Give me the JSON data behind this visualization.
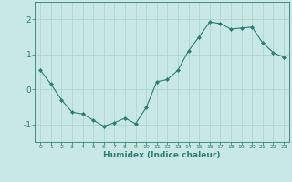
{
  "x": [
    0,
    1,
    2,
    3,
    4,
    5,
    6,
    7,
    8,
    9,
    10,
    11,
    12,
    13,
    14,
    15,
    16,
    17,
    18,
    19,
    20,
    21,
    22,
    23
  ],
  "y": [
    0.55,
    0.15,
    -0.3,
    -0.65,
    -0.7,
    -0.88,
    -1.05,
    -0.95,
    -0.82,
    -0.98,
    -0.52,
    0.22,
    0.28,
    0.55,
    1.1,
    1.5,
    1.92,
    1.88,
    1.72,
    1.75,
    1.78,
    1.33,
    1.05,
    0.92
  ],
  "line_color": "#2e7d6e",
  "marker": "D",
  "marker_size": 2.0,
  "xlabel": "Humidex (Indice chaleur)",
  "xlim": [
    -0.5,
    23.5
  ],
  "ylim": [
    -1.5,
    2.5
  ],
  "yticks": [
    -1,
    0,
    1,
    2
  ],
  "xticks": [
    0,
    1,
    2,
    3,
    4,
    5,
    6,
    7,
    8,
    9,
    10,
    11,
    12,
    13,
    14,
    15,
    16,
    17,
    18,
    19,
    20,
    21,
    22,
    23
  ],
  "bg_color": "#c8e8e5",
  "grid_color": "#b0d4d0",
  "axis_color": "#2e7d6e",
  "tick_color": "#2e7d6e",
  "label_color": "#2e7d6e",
  "xlabel_fontsize": 6.5,
  "xlabel_fontweight": "bold",
  "xtick_fontsize": 4.5,
  "ytick_fontsize": 6.5
}
